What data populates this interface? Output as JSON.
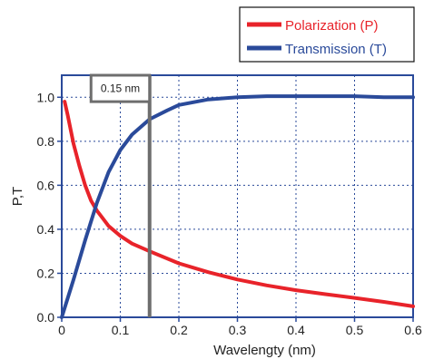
{
  "chart_data": {
    "type": "line",
    "xlabel": "Wavelengty (nm)",
    "ylabel": "P,T",
    "xlim": [
      0,
      0.6
    ],
    "ylim": [
      0,
      1.1
    ],
    "x_ticks": [
      0,
      0.1,
      0.2,
      0.3,
      0.4,
      0.5,
      0.6
    ],
    "x_tick_labels": [
      "0",
      "0.1",
      "0.2",
      "0.3",
      "0.4",
      "0.5",
      "0.6"
    ],
    "y_ticks": [
      0,
      0.2,
      0.4,
      0.6,
      0.8,
      1.0
    ],
    "y_tick_labels": [
      "0.0",
      "0.2",
      "0.4",
      "0.6",
      "0.8",
      "1.0"
    ],
    "grid": true,
    "legend_position": "top-right, above plot",
    "series": [
      {
        "name": "Polarization (P)",
        "color": "#e8232a",
        "x": [
          0.005,
          0.01,
          0.02,
          0.03,
          0.04,
          0.05,
          0.06,
          0.07,
          0.08,
          0.1,
          0.12,
          0.15,
          0.2,
          0.25,
          0.3,
          0.35,
          0.4,
          0.45,
          0.5,
          0.55,
          0.6
        ],
        "y": [
          0.98,
          0.92,
          0.79,
          0.69,
          0.6,
          0.53,
          0.485,
          0.45,
          0.415,
          0.37,
          0.335,
          0.3,
          0.245,
          0.205,
          0.172,
          0.145,
          0.123,
          0.105,
          0.088,
          0.07,
          0.05
        ]
      },
      {
        "name": "Transmission (T)",
        "color": "#2a4a9a",
        "x": [
          0.0,
          0.02,
          0.04,
          0.06,
          0.08,
          0.1,
          0.12,
          0.15,
          0.18,
          0.2,
          0.25,
          0.3,
          0.35,
          0.4,
          0.45,
          0.5,
          0.55,
          0.6
        ],
        "y": [
          0.0,
          0.17,
          0.35,
          0.52,
          0.66,
          0.76,
          0.83,
          0.9,
          0.94,
          0.965,
          0.99,
          1.0,
          1.005,
          1.005,
          1.005,
          1.005,
          1.0,
          1.0
        ]
      }
    ],
    "annotation": {
      "label": "0.15 nm",
      "x_line": 0.15,
      "box_x_from": 0.05,
      "box_x_to": 0.15,
      "box_y_from": 0.98,
      "box_y_to": 1.1
    }
  }
}
